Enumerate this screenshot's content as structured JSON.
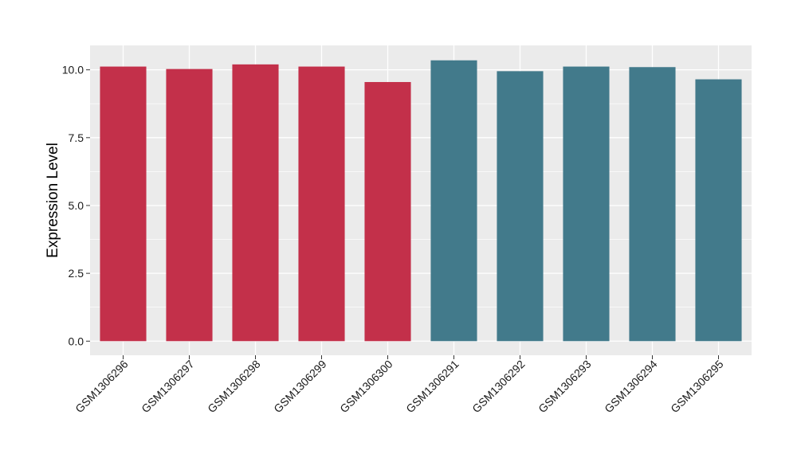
{
  "chart_data": {
    "type": "bar",
    "title": "",
    "xlabel": "",
    "ylabel": "Expression Level",
    "categories": [
      "GSM1306296",
      "GSM1306297",
      "GSM1306298",
      "GSM1306299",
      "GSM1306300",
      "GSM1306291",
      "GSM1306292",
      "GSM1306293",
      "GSM1306294",
      "GSM1306295"
    ],
    "values": [
      10.12,
      10.03,
      10.2,
      10.12,
      9.55,
      10.35,
      9.95,
      10.12,
      10.1,
      9.65
    ],
    "colors": [
      "#c3304a",
      "#c3304a",
      "#c3304a",
      "#c3304a",
      "#c3304a",
      "#427a8b",
      "#427a8b",
      "#427a8b",
      "#427a8b",
      "#427a8b"
    ],
    "yticks": [
      "0.0",
      "2.5",
      "5.0",
      "7.5",
      "10.0"
    ],
    "ylim": [
      -0.52,
      10.9
    ],
    "grid": true,
    "legend": "none",
    "panel_background": "#ebebeb",
    "grid_color": "#ffffff"
  }
}
